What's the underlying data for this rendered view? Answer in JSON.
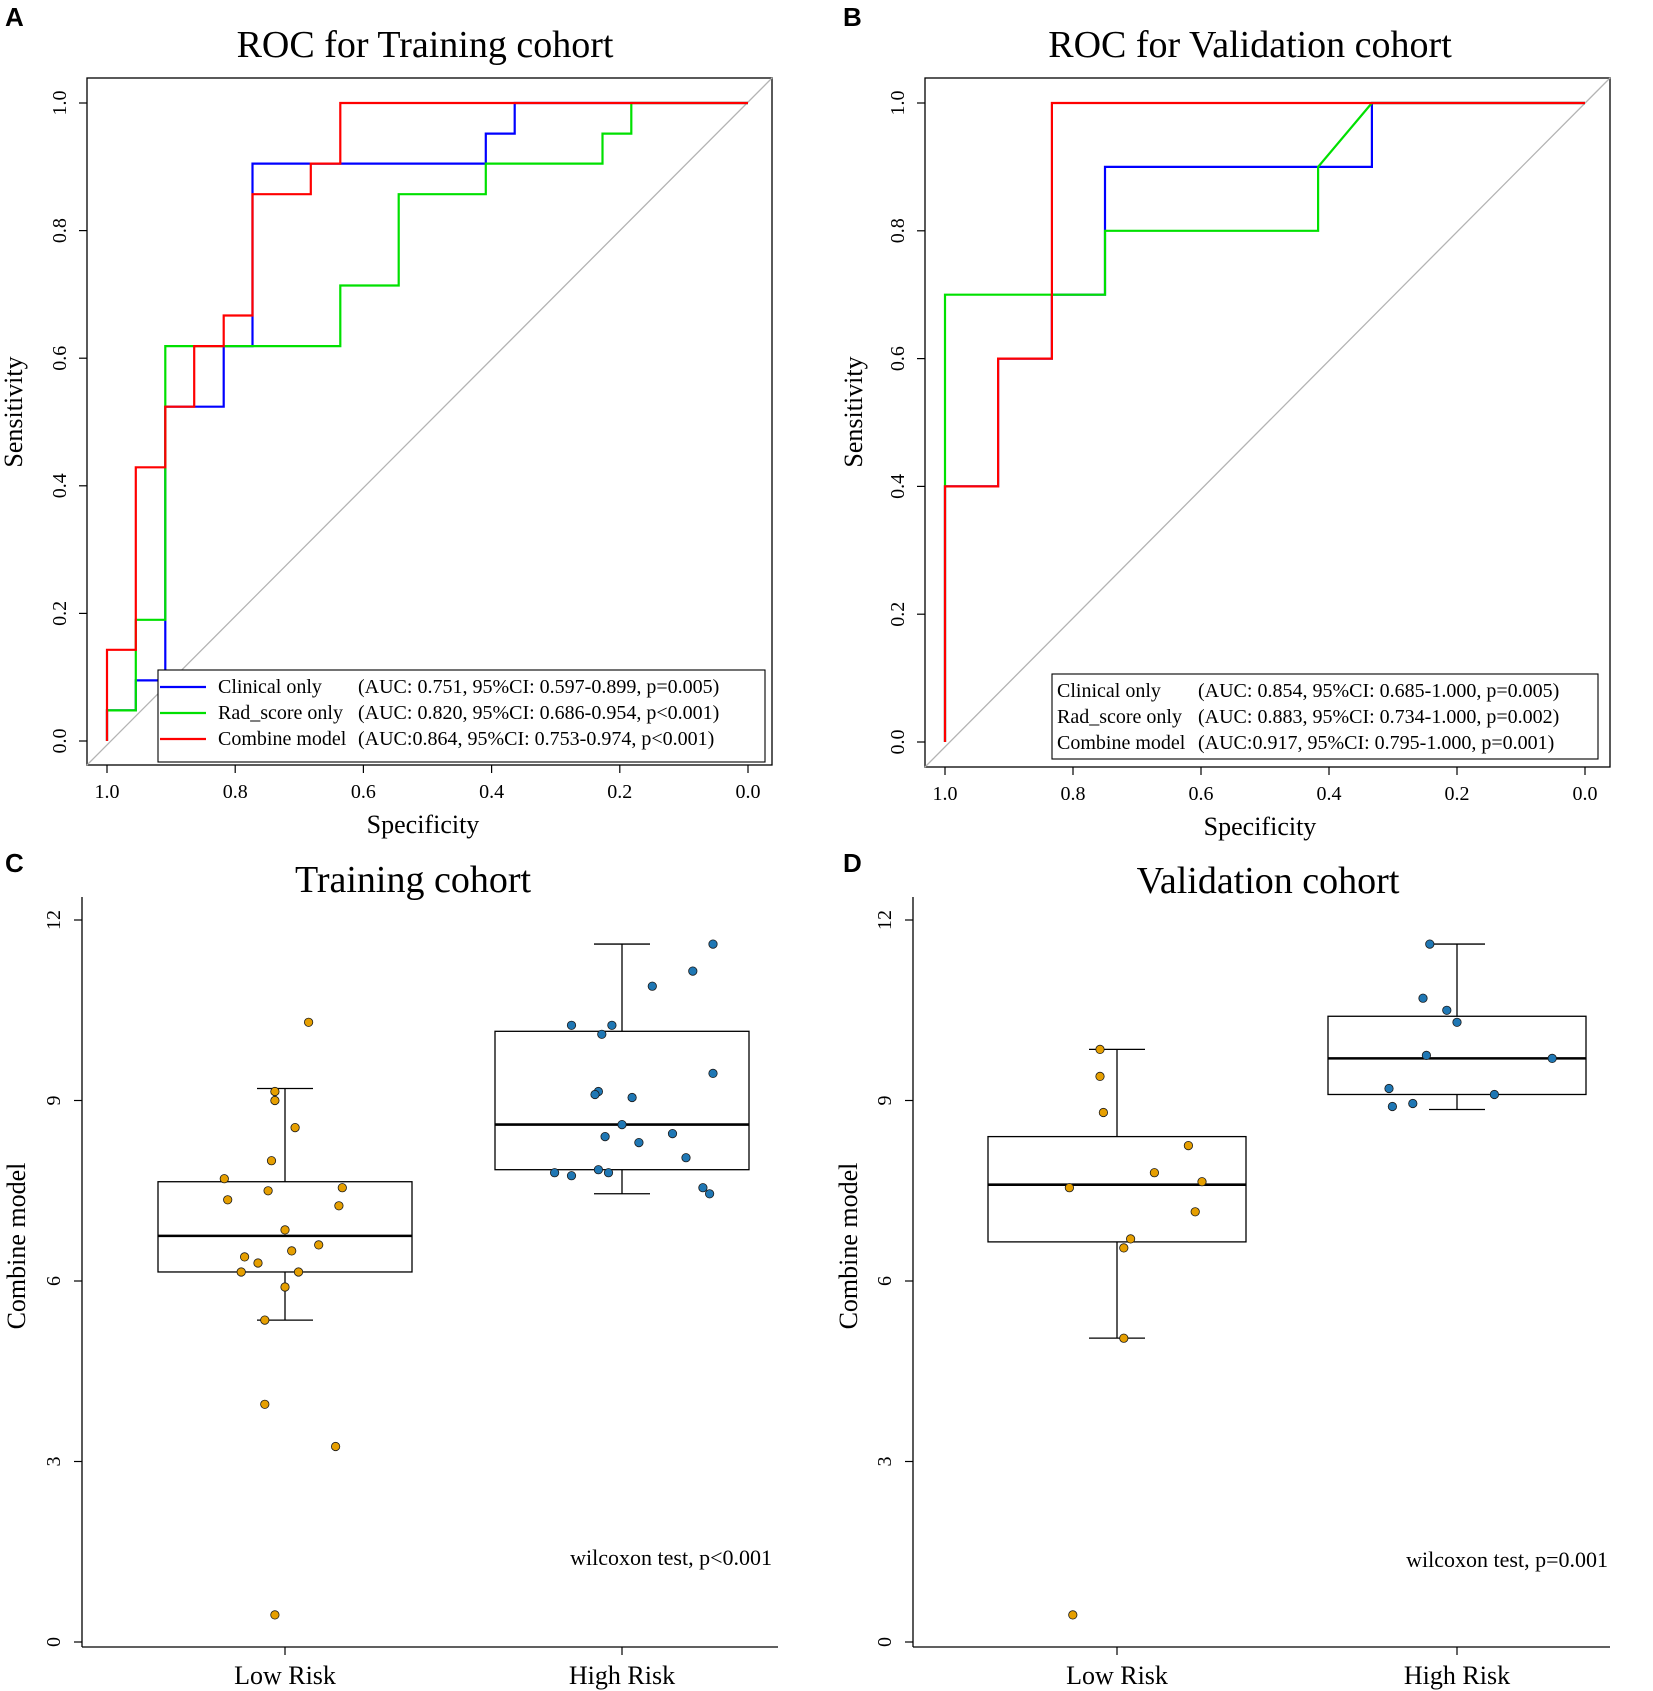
{
  "colors": {
    "clinical": "#0000ff",
    "radscore": "#00e000",
    "combine": "#ff0000",
    "diagonal": "#b3b3b3",
    "low_point": "#e69f00",
    "high_point": "#1f77b4"
  },
  "chart_data": [
    {
      "id": "A",
      "panel_letter": "A",
      "type": "line",
      "title": "ROC for Training cohort",
      "xlabel": "Specificity",
      "ylabel": "Sensitivity",
      "xlim": [
        1.0,
        0.0
      ],
      "ylim": [
        0.0,
        1.0
      ],
      "x_ticks": [
        "1.0",
        "0.8",
        "0.6",
        "0.4",
        "0.2",
        "0.0"
      ],
      "y_ticks": [
        "0.0",
        "0.2",
        "0.4",
        "0.6",
        "0.8",
        "1.0"
      ],
      "legend_position": "bottom-right",
      "legend_has_lines": true,
      "series": [
        {
          "name": "Clinical only",
          "stats": "(AUC: 0.751, 95%CI: 0.597-0.899, p=0.005)",
          "color_key": "clinical",
          "points": [
            [
              1.0,
              0.0
            ],
            [
              1.0,
              0.048
            ],
            [
              0.955,
              0.048
            ],
            [
              0.955,
              0.095
            ],
            [
              0.909,
              0.095
            ],
            [
              0.909,
              0.524
            ],
            [
              0.818,
              0.524
            ],
            [
              0.818,
              0.619
            ],
            [
              0.773,
              0.619
            ],
            [
              0.773,
              0.905
            ],
            [
              0.409,
              0.905
            ],
            [
              0.409,
              0.952
            ],
            [
              0.364,
              0.952
            ],
            [
              0.364,
              1.0
            ],
            [
              0.0,
              1.0
            ]
          ]
        },
        {
          "name": "Rad_score only",
          "stats": "(AUC: 0.820, 95%CI: 0.686-0.954, p<0.001)",
          "color_key": "radscore",
          "points": [
            [
              1.0,
              0.0
            ],
            [
              1.0,
              0.048
            ],
            [
              0.955,
              0.048
            ],
            [
              0.955,
              0.19
            ],
            [
              0.909,
              0.19
            ],
            [
              0.909,
              0.619
            ],
            [
              0.636,
              0.619
            ],
            [
              0.636,
              0.714
            ],
            [
              0.545,
              0.714
            ],
            [
              0.545,
              0.857
            ],
            [
              0.409,
              0.857
            ],
            [
              0.409,
              0.905
            ],
            [
              0.227,
              0.905
            ],
            [
              0.227,
              0.952
            ],
            [
              0.182,
              0.952
            ],
            [
              0.182,
              1.0
            ],
            [
              0.0,
              1.0
            ]
          ]
        },
        {
          "name": "Combine model",
          "stats": "(AUC:0.864, 95%CI: 0.753-0.974, p<0.001)",
          "color_key": "combine",
          "points": [
            [
              1.0,
              0.0
            ],
            [
              1.0,
              0.143
            ],
            [
              0.955,
              0.143
            ],
            [
              0.955,
              0.429
            ],
            [
              0.909,
              0.429
            ],
            [
              0.909,
              0.524
            ],
            [
              0.864,
              0.524
            ],
            [
              0.864,
              0.619
            ],
            [
              0.818,
              0.619
            ],
            [
              0.818,
              0.667
            ],
            [
              0.773,
              0.667
            ],
            [
              0.773,
              0.857
            ],
            [
              0.682,
              0.857
            ],
            [
              0.682,
              0.905
            ],
            [
              0.636,
              0.905
            ],
            [
              0.636,
              1.0
            ],
            [
              0.0,
              1.0
            ]
          ]
        }
      ]
    },
    {
      "id": "B",
      "panel_letter": "B",
      "type": "line",
      "title": "ROC for Validation cohort",
      "xlabel": "Specificity",
      "ylabel": "Sensitivity",
      "xlim": [
        1.0,
        0.0
      ],
      "ylim": [
        0.0,
        1.0
      ],
      "x_ticks": [
        "1.0",
        "0.8",
        "0.6",
        "0.4",
        "0.2",
        "0.0"
      ],
      "y_ticks": [
        "0.0",
        "0.2",
        "0.4",
        "0.6",
        "0.8",
        "1.0"
      ],
      "legend_position": "bottom-right",
      "legend_has_lines": false,
      "series": [
        {
          "name": "Clinical only",
          "stats": "(AUC: 0.854, 95%CI: 0.685-1.000, p=0.005)",
          "color_key": "clinical",
          "points": [
            [
              1.0,
              0.0
            ],
            [
              1.0,
              0.4
            ],
            [
              0.917,
              0.4
            ],
            [
              0.917,
              0.6
            ],
            [
              0.833,
              0.6
            ],
            [
              0.833,
              0.7
            ],
            [
              0.75,
              0.7
            ],
            [
              0.75,
              0.9
            ],
            [
              0.333,
              0.9
            ],
            [
              0.333,
              1.0
            ],
            [
              0.0,
              1.0
            ]
          ]
        },
        {
          "name": "Rad_score only",
          "stats": "(AUC: 0.883, 95%CI: 0.734-1.000, p=0.002)",
          "color_key": "radscore",
          "points": [
            [
              1.0,
              0.0
            ],
            [
              1.0,
              0.7
            ],
            [
              0.75,
              0.7
            ],
            [
              0.75,
              0.8
            ],
            [
              0.417,
              0.8
            ],
            [
              0.417,
              0.9
            ],
            [
              0.333,
              1.0
            ],
            [
              0.0,
              1.0
            ]
          ]
        },
        {
          "name": "Combine model",
          "stats": "(AUC:0.917, 95%CI: 0.795-1.000, p=0.001)",
          "color_key": "combine",
          "points": [
            [
              1.0,
              0.0
            ],
            [
              1.0,
              0.4
            ],
            [
              0.917,
              0.4
            ],
            [
              0.917,
              0.6
            ],
            [
              0.833,
              0.6
            ],
            [
              0.833,
              1.0
            ],
            [
              0.0,
              1.0
            ]
          ]
        }
      ]
    },
    {
      "id": "C",
      "panel_letter": "C",
      "type": "box",
      "title": "Training cohort",
      "ylabel": "Combine model",
      "xlabel": "",
      "categories": [
        "Low Risk",
        "High Risk"
      ],
      "ylim": [
        0,
        12
      ],
      "y_ticks": [
        "0",
        "3",
        "6",
        "9",
        "12"
      ],
      "annotation": "wilcoxon test, p<0.001",
      "groups": [
        {
          "name": "Low Risk",
          "color_key": "low_point",
          "box": {
            "whisker_low": 5.35,
            "q1": 6.15,
            "median": 6.75,
            "q3": 7.65,
            "whisker_high": 9.2
          },
          "points": [
            [
              -0.18,
              7.7
            ],
            [
              -0.17,
              7.35
            ],
            [
              -0.05,
              7.5
            ],
            [
              -0.12,
              6.4
            ],
            [
              -0.08,
              6.3
            ],
            [
              -0.13,
              6.15
            ],
            [
              0.0,
              6.85
            ],
            [
              0.02,
              6.5
            ],
            [
              0.04,
              6.15
            ],
            [
              0.0,
              5.9
            ],
            [
              0.1,
              6.6
            ],
            [
              -0.06,
              5.35
            ],
            [
              -0.03,
              9.15
            ],
            [
              -0.03,
              9.0
            ],
            [
              0.03,
              8.55
            ],
            [
              -0.04,
              8.0
            ],
            [
              0.07,
              10.3
            ],
            [
              0.17,
              7.55
            ],
            [
              0.16,
              7.25
            ],
            [
              -0.06,
              3.95
            ],
            [
              0.15,
              3.25
            ],
            [
              -0.03,
              0.45
            ]
          ]
        },
        {
          "name": "High Risk",
          "color_key": "high_point",
          "box": {
            "whisker_low": 7.45,
            "q1": 7.85,
            "median": 8.6,
            "q3": 10.15,
            "whisker_high": 11.6
          },
          "points": [
            [
              0.27,
              11.6
            ],
            [
              0.21,
              11.15
            ],
            [
              0.09,
              10.9
            ],
            [
              -0.15,
              10.25
            ],
            [
              -0.03,
              10.25
            ],
            [
              -0.06,
              10.1
            ],
            [
              0.27,
              9.45
            ],
            [
              -0.07,
              9.15
            ],
            [
              -0.08,
              9.1
            ],
            [
              0.03,
              9.05
            ],
            [
              -0.2,
              7.8
            ],
            [
              -0.15,
              7.75
            ],
            [
              -0.07,
              7.85
            ],
            [
              -0.04,
              7.8
            ],
            [
              0.0,
              8.6
            ],
            [
              0.05,
              8.3
            ],
            [
              0.15,
              8.45
            ],
            [
              0.19,
              8.05
            ],
            [
              0.24,
              7.55
            ],
            [
              0.26,
              7.45
            ],
            [
              -0.05,
              8.4
            ]
          ]
        }
      ]
    },
    {
      "id": "D",
      "panel_letter": "D",
      "type": "box",
      "title": "Validation cohort",
      "ylabel": "Combine model",
      "xlabel": "",
      "categories": [
        "Low Risk",
        "High Risk"
      ],
      "ylim": [
        0,
        12
      ],
      "y_ticks": [
        "0",
        "3",
        "6",
        "9",
        "12"
      ],
      "annotation": "wilcoxon test, p=0.001",
      "groups": [
        {
          "name": "Low Risk",
          "color_key": "low_point",
          "box": {
            "whisker_low": 5.05,
            "q1": 6.65,
            "median": 7.6,
            "q3": 8.4,
            "whisker_high": 9.85
          },
          "points": [
            [
              -0.05,
              9.85
            ],
            [
              -0.05,
              9.4
            ],
            [
              -0.04,
              8.8
            ],
            [
              0.21,
              8.25
            ],
            [
              0.11,
              7.8
            ],
            [
              0.25,
              7.65
            ],
            [
              -0.14,
              7.55
            ],
            [
              0.23,
              7.15
            ],
            [
              0.04,
              6.7
            ],
            [
              0.02,
              6.55
            ],
            [
              0.02,
              5.05
            ],
            [
              -0.13,
              0.45
            ]
          ]
        },
        {
          "name": "High Risk",
          "color_key": "high_point",
          "box": {
            "whisker_low": 8.85,
            "q1": 9.1,
            "median": 9.7,
            "q3": 10.4,
            "whisker_high": 11.6
          },
          "points": [
            [
              -0.08,
              11.6
            ],
            [
              -0.1,
              10.7
            ],
            [
              -0.03,
              10.5
            ],
            [
              0.0,
              10.3
            ],
            [
              -0.09,
              9.75
            ],
            [
              0.28,
              9.7
            ],
            [
              -0.2,
              9.2
            ],
            [
              0.11,
              9.1
            ],
            [
              -0.19,
              8.9
            ],
            [
              -0.13,
              8.95
            ]
          ]
        }
      ]
    }
  ]
}
